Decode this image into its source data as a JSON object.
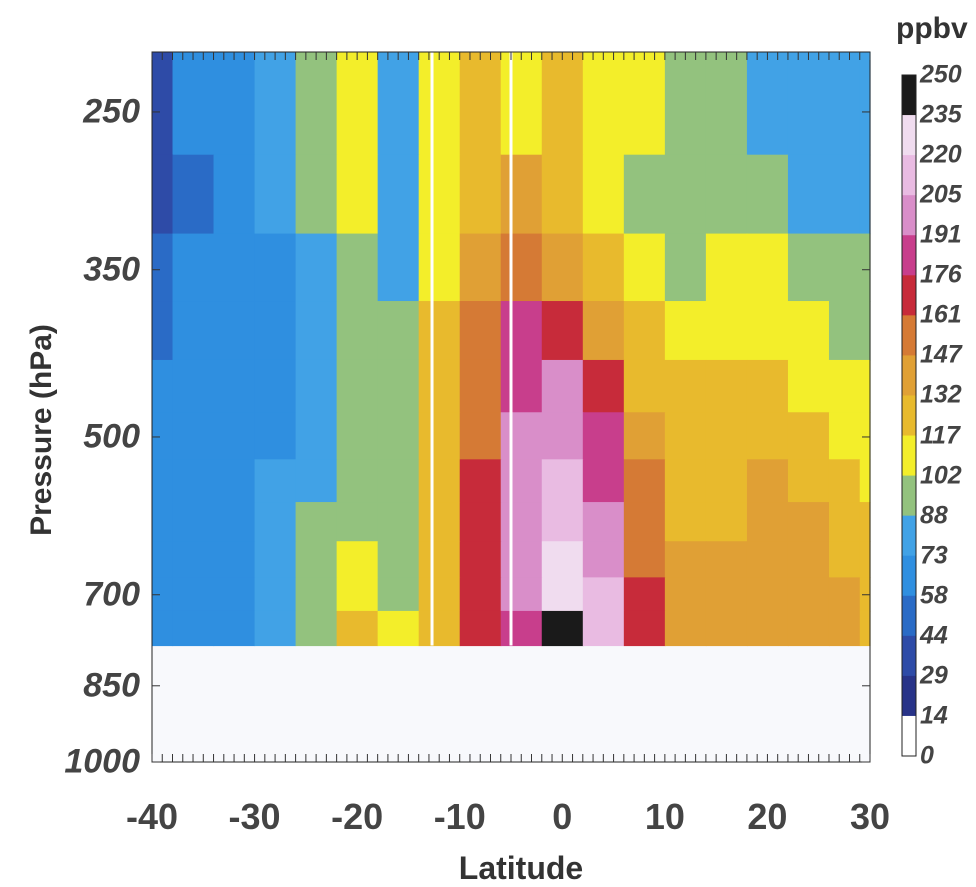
{
  "chart_data": {
    "type": "heatmap",
    "title": "",
    "xlabel": "Latitude",
    "ylabel": "Pressure (hPa)",
    "colorbar_label": "ppbv",
    "xlim": [
      -40,
      30
    ],
    "ylim": [
      1000,
      220
    ],
    "y_scale": "log",
    "x_ticks": [
      "-40",
      "-30",
      "-20",
      "-10",
      "0",
      "10",
      "20",
      "30"
    ],
    "y_ticks": [
      "250",
      "350",
      "500",
      "700",
      "850",
      "1000"
    ],
    "colorbar_ticks": [
      "250",
      "235",
      "220",
      "205",
      "191",
      "176",
      "161",
      "147",
      "132",
      "117",
      "102",
      "88",
      "73",
      "58",
      "44",
      "29",
      "14",
      "0"
    ],
    "colorbar_colors": [
      "#1a1a1a",
      "#f0dcef",
      "#e9bbe2",
      "#d98ec9",
      "#c83e8c",
      "#c72b3a",
      "#d57a35",
      "#e0a035",
      "#e8ba2d",
      "#f3ee2a",
      "#93c27e",
      "#41a2e6",
      "#2f8fe0",
      "#2a6bc6",
      "#2e4ba7",
      "#283388",
      "#ffffff"
    ],
    "colorbar_bounds": [
      0,
      14,
      29,
      44,
      58,
      73,
      88,
      102,
      117,
      132,
      147,
      161,
      176,
      191,
      205,
      220,
      235,
      250
    ],
    "missing_below_hPa": 780,
    "white_vertical_lines_lat": [
      -12.7,
      -5.0
    ],
    "latitude": [
      -40,
      -36,
      -32,
      -28,
      -24,
      -20,
      -16,
      -12,
      -8,
      -4,
      0,
      4,
      8,
      12,
      16,
      20,
      24,
      28,
      30
    ],
    "pressure_levels": [
      250,
      300,
      350,
      400,
      450,
      500,
      550,
      600,
      650,
      700,
      750
    ],
    "ozone_ppbv": [
      [
        40,
        58,
        70,
        75,
        95,
        110,
        75,
        105,
        125,
        110,
        118,
        115,
        108,
        100,
        90,
        85,
        80,
        78,
        76
      ],
      [
        42,
        55,
        70,
        78,
        90,
        105,
        80,
        108,
        130,
        138,
        125,
        112,
        100,
        96,
        92,
        88,
        85,
        80,
        78
      ],
      [
        48,
        60,
        70,
        72,
        82,
        100,
        85,
        112,
        140,
        150,
        140,
        120,
        105,
        100,
        108,
        112,
        100,
        92,
        88
      ],
      [
        55,
        65,
        70,
        72,
        80,
        98,
        88,
        120,
        150,
        180,
        165,
        140,
        118,
        110,
        112,
        116,
        110,
        100,
        95
      ],
      [
        62,
        70,
        72,
        72,
        78,
        96,
        90,
        125,
        155,
        190,
        195,
        170,
        130,
        118,
        118,
        118,
        112,
        110,
        102
      ],
      [
        68,
        72,
        72,
        72,
        78,
        94,
        90,
        125,
        160,
        195,
        200,
        180,
        140,
        120,
        120,
        122,
        118,
        112,
        105
      ],
      [
        70,
        72,
        72,
        75,
        85,
        96,
        90,
        128,
        165,
        200,
        205,
        185,
        148,
        125,
        124,
        132,
        125,
        118,
        112
      ],
      [
        70,
        72,
        72,
        80,
        95,
        100,
        90,
        128,
        165,
        200,
        215,
        192,
        152,
        128,
        130,
        135,
        132,
        128,
        120
      ],
      [
        70,
        72,
        72,
        85,
        100,
        104,
        94,
        128,
        165,
        200,
        225,
        200,
        160,
        132,
        132,
        135,
        132,
        130,
        125
      ],
      [
        70,
        72,
        72,
        85,
        100,
        112,
        98,
        128,
        168,
        195,
        232,
        205,
        165,
        135,
        133,
        135,
        134,
        132,
        128
      ],
      [
        70,
        72,
        72,
        85,
        100,
        118,
        104,
        128,
        170,
        190,
        240,
        205,
        165,
        135,
        133,
        136,
        135,
        133,
        130
      ]
    ]
  }
}
